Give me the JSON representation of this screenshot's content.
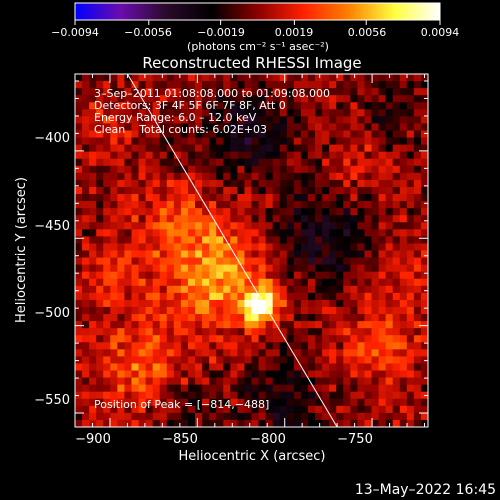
{
  "chart_data": {
    "type": "heatmap",
    "title": "Reconstructed RHESSI Image",
    "xlabel": "Heliocentric X (arcsec)",
    "ylabel": "Heliocentric Y (arcsec)",
    "xlim": [
      -920,
      -718
    ],
    "ylim": [
      -558,
      -356
    ],
    "x_ticks": [
      -900,
      -850,
      -800,
      -750
    ],
    "x_tick_labels": [
      "−900",
      "−850",
      "−800",
      "−750"
    ],
    "y_ticks": [
      -400,
      -450,
      -500,
      -550
    ],
    "y_tick_labels": [
      "−400",
      "−450",
      "−500",
      "−550"
    ],
    "colorbar": {
      "range": [
        -0.0094,
        0.0094
      ],
      "ticks": [
        -0.0094,
        -0.0056,
        -0.0019,
        0.0019,
        0.0056,
        0.0094
      ],
      "tick_labels": [
        "−0.0094",
        "−0.0056",
        "−0.0019",
        "0.0019",
        "0.0056",
        "0.0094"
      ],
      "unit_label": "(photons cm⁻² s⁻¹ asec⁻²)",
      "colormap": [
        "#0000ff",
        "#6a0dad",
        "#2a0a2a",
        "#000000",
        "#8b0000",
        "#ff2000",
        "#ff8000",
        "#ffff40",
        "#ffffff"
      ]
    },
    "info_lines": [
      "3–Sep–2011 01:08:08.000 to 01:09:08.000",
      "Detectors: 3F 4F 5F 6F 7F 8F, Att 0",
      "Energy Range: 6.0 – 12.0 keV",
      "Clean    Total counts: 6.02E+03"
    ],
    "peak": {
      "x": -814,
      "y": -488,
      "label": "Position of Peak = [−814,−488]"
    },
    "limb_line": {
      "x": [
        -890,
        -770
      ],
      "y": [
        -356,
        -558
      ]
    },
    "sources": [
      {
        "x": -814,
        "y": -488,
        "value": 0.0094,
        "sigma": 7
      },
      {
        "x": -840,
        "y": -470,
        "value": 0.005,
        "sigma": 22
      },
      {
        "x": -880,
        "y": -525,
        "value": 0.0032,
        "sigma": 20
      },
      {
        "x": -865,
        "y": -440,
        "value": 0.0026,
        "sigma": 14
      },
      {
        "x": -900,
        "y": -470,
        "value": 0.0022,
        "sigma": 12
      },
      {
        "x": -745,
        "y": -510,
        "value": 0.0028,
        "sigma": 18
      },
      {
        "x": -730,
        "y": -470,
        "value": 0.002,
        "sigma": 12
      },
      {
        "x": -760,
        "y": -410,
        "value": 0.0016,
        "sigma": 12
      },
      {
        "x": -900,
        "y": -385,
        "value": 0.0012,
        "sigma": 14
      },
      {
        "x": -820,
        "y": -390,
        "value": -0.003,
        "sigma": 18
      },
      {
        "x": -780,
        "y": -450,
        "value": -0.0035,
        "sigma": 20
      },
      {
        "x": -800,
        "y": -540,
        "value": -0.0028,
        "sigma": 16
      },
      {
        "x": -860,
        "y": -545,
        "value": -0.0022,
        "sigma": 14
      },
      {
        "x": -740,
        "y": -380,
        "value": -0.002,
        "sigma": 12
      }
    ]
  },
  "footer": {
    "timestamp": "13–May–2022 16:45"
  },
  "colors": {
    "background": "#000000",
    "text": "#ffffff",
    "limb": "#ffffff"
  }
}
